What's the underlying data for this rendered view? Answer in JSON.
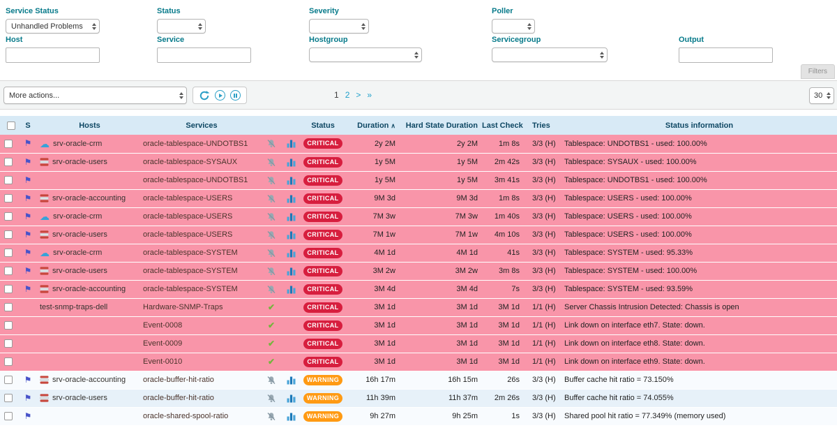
{
  "colors": {
    "critical_badge": "#d71e3e",
    "warning_badge": "#ff9a13",
    "critical_row": "#f995a9",
    "accent_teal": "#2b9fc6",
    "label_teal": "#077a8a",
    "table_header_bg": "#d8eaf6",
    "table_header_text": "#0e4763"
  },
  "icons": {
    "flag": "⚑",
    "cloud": "☁",
    "check": "✔"
  },
  "filters": {
    "service_status": {
      "label": "Service Status",
      "value": "Unhandled Problems"
    },
    "status": {
      "label": "Status",
      "value": ""
    },
    "severity": {
      "label": "Severity",
      "value": ""
    },
    "poller": {
      "label": "Poller",
      "value": ""
    },
    "host": {
      "label": "Host",
      "value": ""
    },
    "service": {
      "label": "Service",
      "value": ""
    },
    "hostgroup": {
      "label": "Hostgroup",
      "value": ""
    },
    "servicegroup": {
      "label": "Servicegroup",
      "value": ""
    },
    "output": {
      "label": "Output",
      "value": ""
    },
    "filters_button": "Filters"
  },
  "toolbar": {
    "more_actions": "More actions...",
    "pagination": {
      "page1": "1",
      "page2": "2",
      "next": ">",
      "last": "»"
    },
    "page_size": "30"
  },
  "table": {
    "columns": {
      "s": "S",
      "hosts": "Hosts",
      "services": "Services",
      "status": "Status",
      "duration": "Duration",
      "sort_asc": "∧",
      "hard_state_duration": "Hard State Duration",
      "last_check": "Last Check",
      "tries": "Tries",
      "status_information": "Status information"
    },
    "rows": [
      {
        "checkbox": true,
        "flagged": true,
        "host_icon": "cloud",
        "host": "srv-oracle-crm",
        "service": "oracle-tablespace-UNDOTBS1",
        "icons": "bell-chart",
        "status": "CRITICAL",
        "duration": "2y 2M",
        "hard_state_duration": "2y 2M",
        "last_check": "1m 8s",
        "tries": "3/3 (H)",
        "info": "Tablespace: UNDOTBS1 - used: 100.00%"
      },
      {
        "checkbox": true,
        "flagged": true,
        "host_icon": "db",
        "host": "srv-oracle-users",
        "service": "oracle-tablespace-SYSAUX",
        "icons": "bell-chart",
        "status": "CRITICAL",
        "duration": "1y 5M",
        "hard_state_duration": "1y 5M",
        "last_check": "2m 42s",
        "tries": "3/3 (H)",
        "info": "Tablespace: SYSAUX - used: 100.00%"
      },
      {
        "checkbox": true,
        "flagged": true,
        "host_icon": "",
        "host": "",
        "service": "oracle-tablespace-UNDOTBS1",
        "icons": "bell-chart",
        "status": "CRITICAL",
        "duration": "1y 5M",
        "hard_state_duration": "1y 5M",
        "last_check": "3m 41s",
        "tries": "3/3 (H)",
        "info": "Tablespace: UNDOTBS1 - used: 100.00%"
      },
      {
        "checkbox": true,
        "flagged": true,
        "host_icon": "db",
        "host": "srv-oracle-accounting",
        "service": "oracle-tablespace-USERS",
        "icons": "bell-chart",
        "status": "CRITICAL",
        "duration": "9M 3d",
        "hard_state_duration": "9M 3d",
        "last_check": "1m 8s",
        "tries": "3/3 (H)",
        "info": "Tablespace: USERS - used: 100.00%"
      },
      {
        "checkbox": true,
        "flagged": true,
        "host_icon": "cloud",
        "host": "srv-oracle-crm",
        "service": "oracle-tablespace-USERS",
        "icons": "bell-chart",
        "status": "CRITICAL",
        "duration": "7M 3w",
        "hard_state_duration": "7M 3w",
        "last_check": "1m 40s",
        "tries": "3/3 (H)",
        "info": "Tablespace: USERS - used: 100.00%"
      },
      {
        "checkbox": true,
        "flagged": true,
        "host_icon": "db",
        "host": "srv-oracle-users",
        "service": "oracle-tablespace-USERS",
        "icons": "bell-chart",
        "status": "CRITICAL",
        "duration": "7M 1w",
        "hard_state_duration": "7M 1w",
        "last_check": "4m 10s",
        "tries": "3/3 (H)",
        "info": "Tablespace: USERS - used: 100.00%"
      },
      {
        "checkbox": true,
        "flagged": true,
        "host_icon": "cloud",
        "host": "srv-oracle-crm",
        "service": "oracle-tablespace-SYSTEM",
        "icons": "bell-chart",
        "status": "CRITICAL",
        "duration": "4M 1d",
        "hard_state_duration": "4M 1d",
        "last_check": "41s",
        "tries": "3/3 (H)",
        "info": "Tablespace: SYSTEM - used: 95.33%"
      },
      {
        "checkbox": true,
        "flagged": true,
        "host_icon": "db",
        "host": "srv-oracle-users",
        "service": "oracle-tablespace-SYSTEM",
        "icons": "bell-chart",
        "status": "CRITICAL",
        "duration": "3M 2w",
        "hard_state_duration": "3M 2w",
        "last_check": "3m 8s",
        "tries": "3/3 (H)",
        "info": "Tablespace: SYSTEM - used: 100.00%"
      },
      {
        "checkbox": true,
        "flagged": true,
        "host_icon": "db",
        "host": "srv-oracle-accounting",
        "service": "oracle-tablespace-SYSTEM",
        "icons": "bell-chart",
        "status": "CRITICAL",
        "duration": "3M 4d",
        "hard_state_duration": "3M 4d",
        "last_check": "7s",
        "tries": "3/3 (H)",
        "info": "Tablespace: SYSTEM - used: 93.59%"
      },
      {
        "checkbox": true,
        "flagged": false,
        "host_icon": "",
        "host": "test-snmp-traps-dell",
        "service": "Hardware-SNMP-Traps",
        "icons": "check",
        "status": "CRITICAL",
        "duration": "3M 1d",
        "hard_state_duration": "3M 1d",
        "last_check": "3M 1d",
        "tries": "1/1 (H)",
        "info": "Server Chassis Intrusion Detected: Chassis is open"
      },
      {
        "checkbox": true,
        "flagged": false,
        "host_icon": "",
        "host": "",
        "service": "Event-0008",
        "icons": "check",
        "status": "CRITICAL",
        "duration": "3M 1d",
        "hard_state_duration": "3M 1d",
        "last_check": "3M 1d",
        "tries": "1/1 (H)",
        "info": "Link down on interface eth7. State: down."
      },
      {
        "checkbox": true,
        "flagged": false,
        "host_icon": "",
        "host": "",
        "service": "Event-0009",
        "icons": "check",
        "status": "CRITICAL",
        "duration": "3M 1d",
        "hard_state_duration": "3M 1d",
        "last_check": "3M 1d",
        "tries": "1/1 (H)",
        "info": "Link down on interface eth8. State: down."
      },
      {
        "checkbox": true,
        "flagged": false,
        "host_icon": "",
        "host": "",
        "service": "Event-0010",
        "icons": "check",
        "status": "CRITICAL",
        "duration": "3M 1d",
        "hard_state_duration": "3M 1d",
        "last_check": "3M 1d",
        "tries": "1/1 (H)",
        "info": "Link down on interface eth9. State: down."
      },
      {
        "checkbox": true,
        "flagged": true,
        "host_icon": "db",
        "host": "srv-oracle-accounting",
        "service": "oracle-buffer-hit-ratio",
        "icons": "bell-chart",
        "status": "WARNING",
        "duration": "16h 17m",
        "hard_state_duration": "16h 15m",
        "last_check": "26s",
        "tries": "3/3 (H)",
        "info": "Buffer cache hit ratio = 73.150%"
      },
      {
        "checkbox": true,
        "flagged": true,
        "host_icon": "db",
        "host": "srv-oracle-users",
        "service": "oracle-buffer-hit-ratio",
        "icons": "bell-chart",
        "status": "WARNING",
        "duration": "11h 39m",
        "hard_state_duration": "11h 37m",
        "last_check": "2m 26s",
        "tries": "3/3 (H)",
        "info": "Buffer cache hit ratio = 74.055%"
      },
      {
        "checkbox": true,
        "flagged": true,
        "host_icon": "",
        "host": "",
        "service": "oracle-shared-spool-ratio",
        "icons": "bell-chart",
        "status": "WARNING",
        "duration": "9h 27m",
        "hard_state_duration": "9h 25m",
        "last_check": "1s",
        "tries": "3/3 (H)",
        "info": "Shared pool hit ratio = 77.349% (memory used)"
      }
    ]
  }
}
